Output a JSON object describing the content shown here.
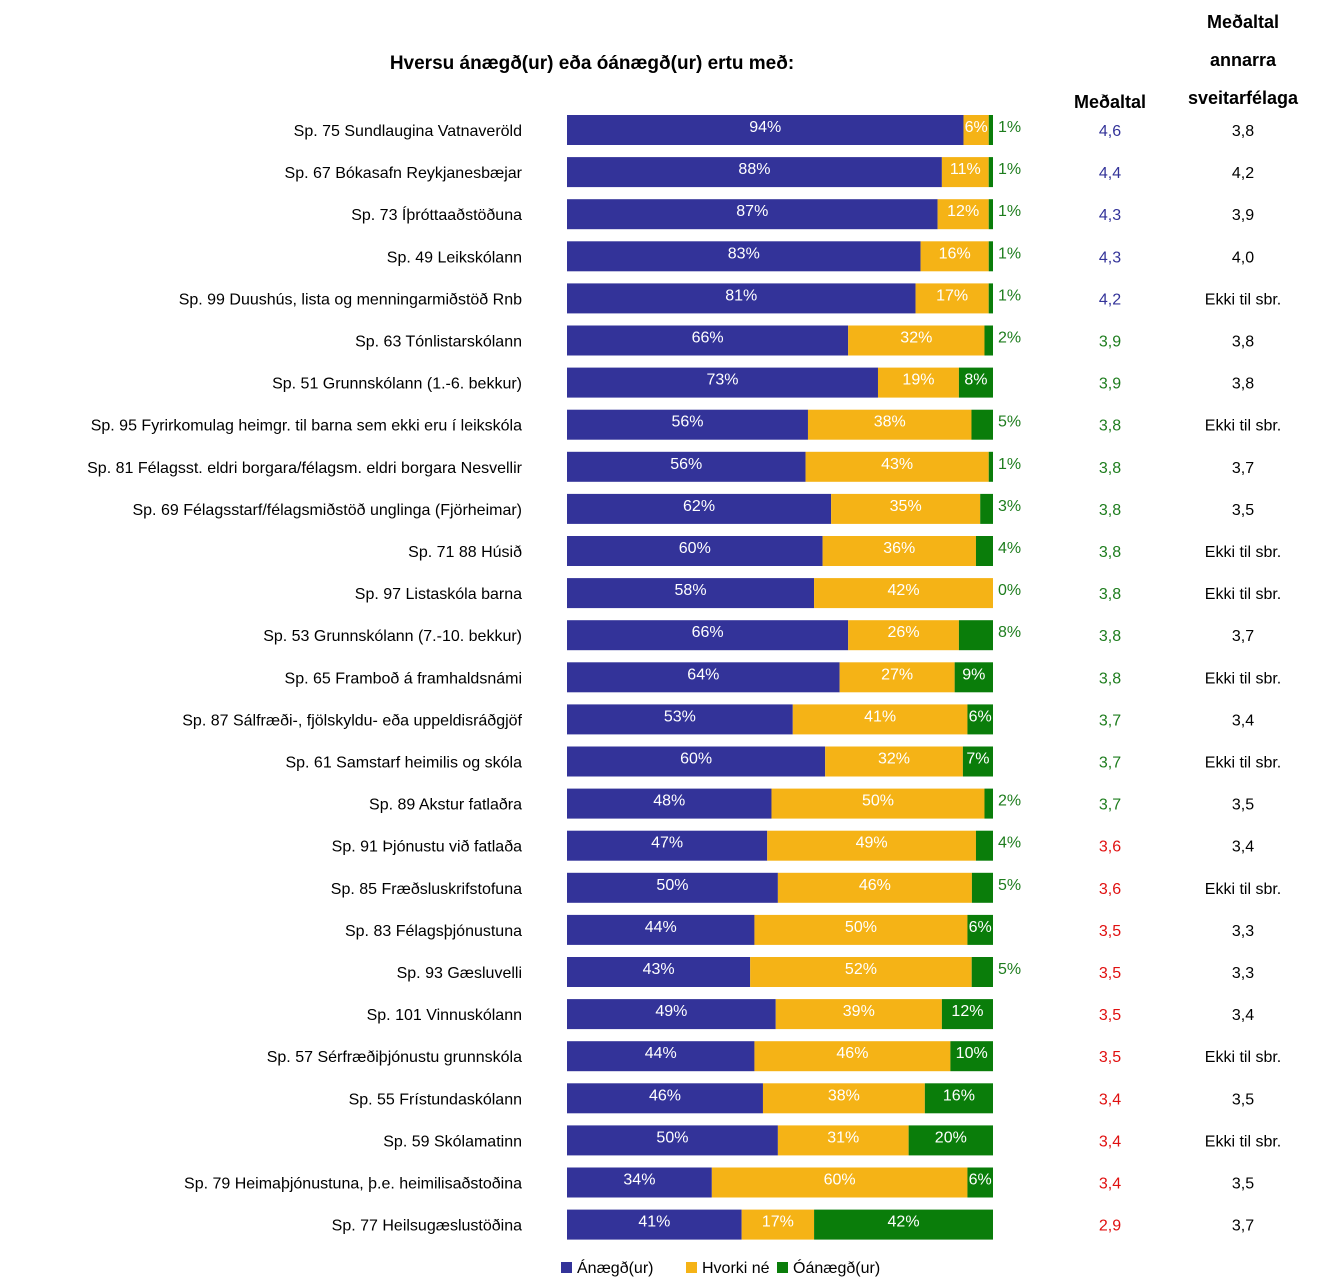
{
  "chart_data": {
    "type": "bar",
    "orientation": "horizontal",
    "stacked": true,
    "percent_stacked": true,
    "title": "Hversu ánægð(ur) eða óánægð(ur) ertu með:",
    "mean_header": "Meðaltal",
    "other_header_lines": [
      "Meðaltal",
      "annarra",
      "sveitarfélaga"
    ],
    "colors": {
      "satisfied": "#333399",
      "neither": "#F5B316",
      "dissatisfied": "#0A7D0A",
      "mean_blue": "#333399",
      "mean_green": "#1E7D1E",
      "mean_red": "#E01010"
    },
    "legend": {
      "position": "bottom",
      "entries": [
        {
          "label": "Ánægð(ur)",
          "series": "satisfied"
        },
        {
          "label": "Hvorki né",
          "series": "neither"
        },
        {
          "label": "Óánægð(ur)",
          "series": "dissatisfied"
        }
      ]
    },
    "categories": [
      "Sp. 75 Sundlaugina Vatnaveröld",
      "Sp. 67 Bókasafn Reykjanesbæjar",
      "Sp. 73 Íþróttaaðstöðuna",
      "Sp. 49 Leikskólann",
      "Sp. 99 Duushús, lista og menningarmiðstöð Rnb",
      "Sp. 63 Tónlistarskólann",
      "Sp. 51 Grunnskólann (1.-6. bekkur)",
      "Sp. 95 Fyrirkomulag heimgr. til barna sem ekki eru í leikskóla",
      "Sp. 81 Félagsst. eldri borgara/félagsm. eldri borgara Nesvellir",
      "Sp. 69 Félagsstarf/félagsmiðstöð unglinga (Fjörheimar)",
      "Sp. 71 88 Húsið",
      "Sp. 97 Listaskóla barna",
      "Sp. 53 Grunnskólann (7.-10. bekkur)",
      "Sp. 65 Framboð á framhaldsnámi",
      "Sp. 87 Sálfræði-, fjölskyldu- eða uppeldisráðgjöf",
      "Sp. 61 Samstarf heimilis og skóla",
      "Sp. 89 Akstur fatlaðra",
      "Sp. 91 Þjónustu við fatlaða",
      "Sp. 85 Fræðsluskrifstofuna",
      "Sp. 83 Félagsþjónustuna",
      "Sp. 93 Gæsluvelli",
      "Sp. 101 Vinnuskólann",
      "Sp. 57 Sérfræðiþjónustu grunnskóla",
      "Sp. 55 Frístundaskólann",
      "Sp. 59 Skólamatinn",
      "Sp. 79 Heimaþjónustuna, þ.e. heimilisaðstoðina",
      "Sp. 77 Heilsugæslustöðina"
    ],
    "series": [
      {
        "name": "Ánægð(ur)",
        "key": "satisfied",
        "values": [
          94,
          88,
          87,
          83,
          81,
          66,
          73,
          56,
          56,
          62,
          60,
          58,
          66,
          64,
          53,
          60,
          48,
          47,
          50,
          44,
          43,
          49,
          44,
          46,
          50,
          34,
          41
        ]
      },
      {
        "name": "Hvorki né",
        "key": "neither",
        "values": [
          6,
          11,
          12,
          16,
          17,
          32,
          19,
          38,
          43,
          35,
          36,
          42,
          26,
          27,
          41,
          32,
          50,
          49,
          46,
          50,
          52,
          39,
          46,
          38,
          31,
          60,
          17
        ]
      },
      {
        "name": "Óánægð(ur)",
        "key": "dissatisfied",
        "values": [
          1,
          1,
          1,
          1,
          1,
          2,
          8,
          5,
          1,
          3,
          4,
          0,
          8,
          9,
          6,
          7,
          2,
          4,
          5,
          6,
          5,
          12,
          10,
          16,
          20,
          6,
          42
        ]
      }
    ],
    "dissatisfied_label_outside": [
      true,
      true,
      true,
      true,
      true,
      true,
      false,
      true,
      true,
      true,
      true,
      true,
      true,
      false,
      false,
      false,
      true,
      true,
      true,
      false,
      true,
      false,
      false,
      false,
      false,
      false,
      false
    ],
    "means": [
      "4,6",
      "4,4",
      "4,3",
      "4,3",
      "4,2",
      "3,9",
      "3,9",
      "3,8",
      "3,8",
      "3,8",
      "3,8",
      "3,8",
      "3,8",
      "3,8",
      "3,7",
      "3,7",
      "3,7",
      "3,6",
      "3,6",
      "3,5",
      "3,5",
      "3,5",
      "3,5",
      "3,4",
      "3,4",
      "3,4",
      "2,9"
    ],
    "mean_color_keys": [
      "mean_blue",
      "mean_blue",
      "mean_blue",
      "mean_blue",
      "mean_blue",
      "mean_green",
      "mean_green",
      "mean_green",
      "mean_green",
      "mean_green",
      "mean_green",
      "mean_green",
      "mean_green",
      "mean_green",
      "mean_green",
      "mean_green",
      "mean_green",
      "mean_red",
      "mean_red",
      "mean_red",
      "mean_red",
      "mean_red",
      "mean_red",
      "mean_red",
      "mean_red",
      "mean_red",
      "mean_red"
    ],
    "other_means": [
      "3,8",
      "4,2",
      "3,9",
      "4,0",
      "Ekki til sbr.",
      "3,8",
      "3,8",
      "Ekki til sbr.",
      "3,7",
      "3,5",
      "Ekki til sbr.",
      "Ekki til sbr.",
      "3,7",
      "Ekki til sbr.",
      "3,4",
      "Ekki til sbr.",
      "3,5",
      "3,4",
      "Ekki til sbr.",
      "3,3",
      "3,3",
      "3,4",
      "Ekki til sbr.",
      "3,5",
      "Ekki til sbr.",
      "3,5",
      "3,7"
    ]
  }
}
